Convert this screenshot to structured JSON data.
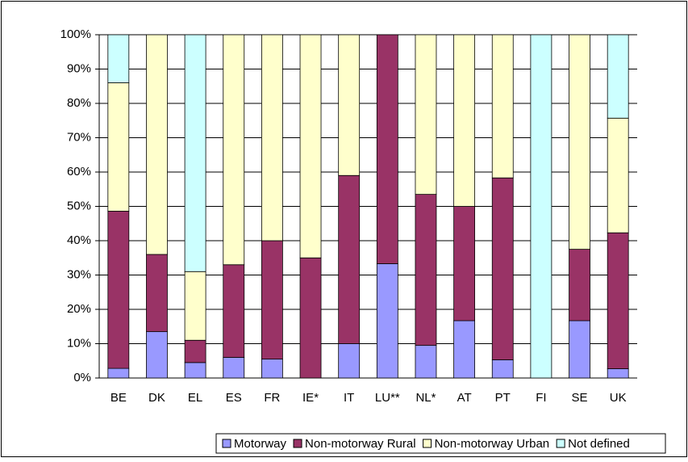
{
  "chart_data": {
    "type": "stacked_bar",
    "categories": [
      "BE",
      "DK",
      "EL",
      "ES",
      "FR",
      "IE*",
      "IT",
      "LU**",
      "NL*",
      "AT",
      "PT",
      "FI",
      "SE",
      "UK"
    ],
    "series": [
      {
        "name": "Motorway",
        "color": "#9999ff",
        "values": [
          2.8,
          13.5,
          4.5,
          6,
          5.5,
          0,
          10,
          33.3,
          9.5,
          16.7,
          5.3,
          0,
          16.7,
          2.7
        ]
      },
      {
        "name": "Non-motorway Rural",
        "color": "#993366",
        "values": [
          45.8,
          22.5,
          6.5,
          27,
          34.5,
          35,
          49,
          66.7,
          44,
          33.3,
          53,
          0,
          20.8,
          39.6
        ]
      },
      {
        "name": "Non-motorway Urban",
        "color": "#ffffcc",
        "values": [
          37.4,
          64,
          20,
          67,
          60,
          65,
          41,
          0,
          46.5,
          50,
          41.7,
          0,
          62.5,
          33.4
        ]
      },
      {
        "name": "Not defined",
        "color": "#ccffff",
        "values": [
          14,
          0,
          69,
          0,
          0,
          0,
          0,
          0,
          0,
          0,
          0,
          100,
          0,
          24.3
        ]
      }
    ],
    "ylim": [
      0,
      100
    ],
    "yticks": [
      {
        "value": 0,
        "label": "0%"
      },
      {
        "value": 10,
        "label": "10%"
      },
      {
        "value": 20,
        "label": "20%"
      },
      {
        "value": 30,
        "label": "30%"
      },
      {
        "value": 40,
        "label": "40%"
      },
      {
        "value": 50,
        "label": "50%"
      },
      {
        "value": 60,
        "label": "60%"
      },
      {
        "value": 70,
        "label": "70%"
      },
      {
        "value": 80,
        "label": "80%"
      },
      {
        "value": 90,
        "label": "90%"
      },
      {
        "value": 100,
        "label": "100%"
      }
    ],
    "grid": true,
    "legend": "bottom"
  }
}
